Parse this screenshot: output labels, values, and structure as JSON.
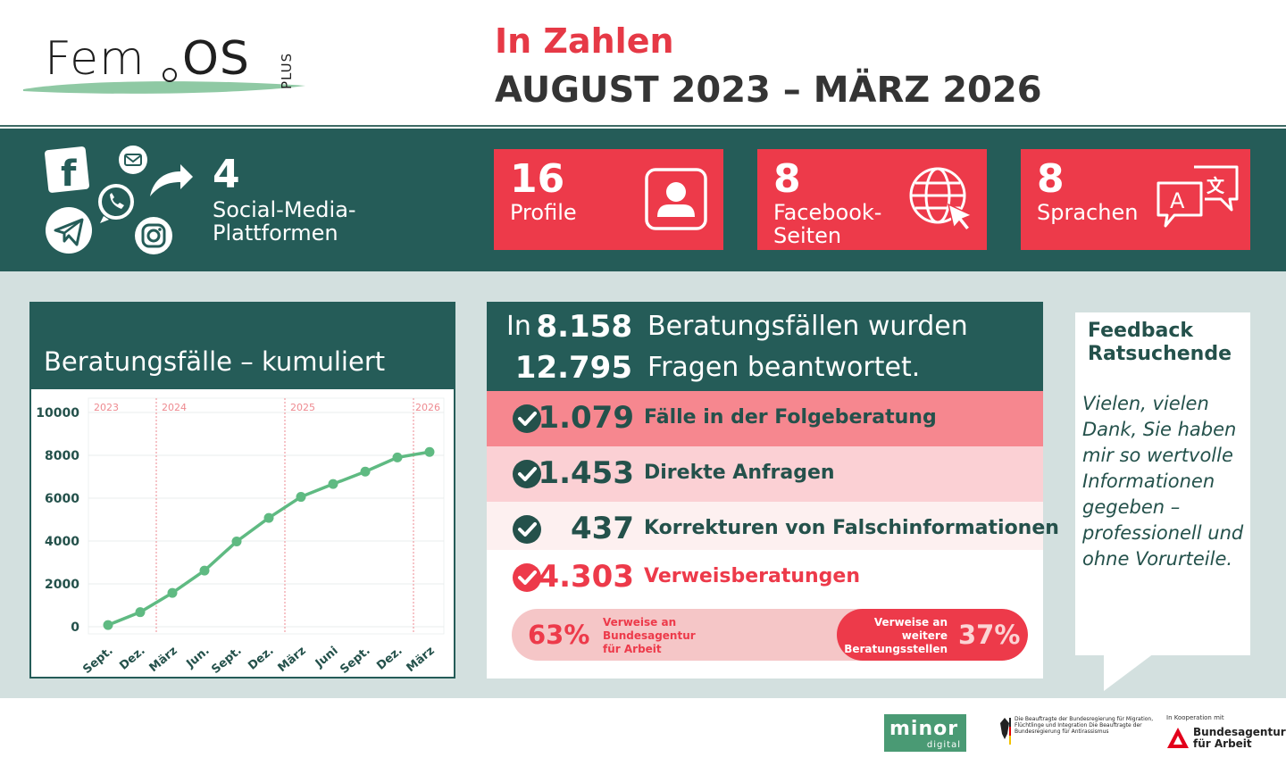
{
  "header": {
    "logo": {
      "fem": "Fem",
      "os": "OS",
      "plus": "PLUS"
    },
    "kicker": "In Zahlen",
    "period": "AUGUST 2023 – MÄRZ 2026"
  },
  "band": {
    "social": {
      "count": "4",
      "label": "Social-Media-Plattformen",
      "icons": [
        "facebook-icon",
        "mail-icon",
        "share-arrow-icon",
        "whatsapp-icon",
        "telegram-icon",
        "instagram-icon"
      ]
    },
    "stats": [
      {
        "number": "16",
        "label": "Profile",
        "icon": "profile-icon"
      },
      {
        "number": "8",
        "label": "Facebook-Seiten",
        "icon": "globe-cursor-icon"
      },
      {
        "number": "8",
        "label": "Sprachen",
        "icon": "translate-icon"
      }
    ]
  },
  "chart_data": {
    "type": "line",
    "title": "Beratungsfälle – kumuliert",
    "x": [
      "Sept.",
      "Dez.",
      "März",
      "Jun.",
      "Sept.",
      "Dez.",
      "März",
      "Juni",
      "Sept.",
      "Dez.",
      "März"
    ],
    "series": [
      {
        "values": [
          80,
          680,
          1580,
          2620,
          3980,
          5080,
          6060,
          6660,
          7240,
          7900,
          8158
        ]
      }
    ],
    "year_labels": [
      {
        "label": "2023",
        "at": 0
      },
      {
        "label": "2024",
        "at": 1.5
      },
      {
        "label": "2025",
        "at": 5.5
      },
      {
        "label": "2026",
        "at": 9.5
      }
    ],
    "ylim": [
      0,
      10000
    ],
    "yticks": [
      0,
      2000,
      4000,
      6000,
      8000,
      10000
    ],
    "grid": true,
    "colors": {
      "line": "#5fba82",
      "grid": "#e8ecec",
      "year": "#ee8a90",
      "axis_text": "#24514b"
    }
  },
  "consult": {
    "intro": "In",
    "cases": "8.158",
    "cases_text": "Beratungsfällen wurden",
    "questions": "12.795",
    "questions_text": "Fragen beantwortet.",
    "rows": [
      {
        "number": "1.079",
        "text": "Fälle in der Folgeberatung",
        "bg": "#f6878f",
        "check": "#24514b"
      },
      {
        "number": "1.453",
        "text": "Direkte Anfragen",
        "bg": "#fbd0d4",
        "check": "#24514b"
      },
      {
        "number": "437",
        "text": "Korrekturen von Falschinformationen",
        "bg": "#fdf0f0",
        "check": "#24514b"
      },
      {
        "number": "4.303",
        "text": "Verweisberatungen",
        "bg": "#ffffff",
        "check": "#ed3a4a"
      }
    ],
    "split": {
      "left_pct": "63%",
      "left_text": "Verweise an Bundesagentur für Arbeit",
      "right_pct": "37%",
      "right_text": "Verweise an weitere Beratungsstellen",
      "left_share": 0.63
    }
  },
  "feedback": {
    "title": "Feedback Ratsuchende",
    "quote": "Vielen, vielen Dank, Sie haben mir so wertvolle Informationen gegeben – professionell und ohne Vorurteile."
  },
  "footer": {
    "minor": {
      "name": "minor",
      "sub": "digital"
    },
    "gov_text": "Die Beauftragte der Bundesregierung für Migration, Flüchtlinge und Integration Die Beauftragte der Bundesregierung für Antirassismus",
    "ba": {
      "koop": "In Kooperation mit",
      "name": "Bundesagentur für Arbeit"
    }
  },
  "colors": {
    "teal": "#255c58",
    "red": "#ed3a4a",
    "panel_bg": "#d3e0df"
  }
}
